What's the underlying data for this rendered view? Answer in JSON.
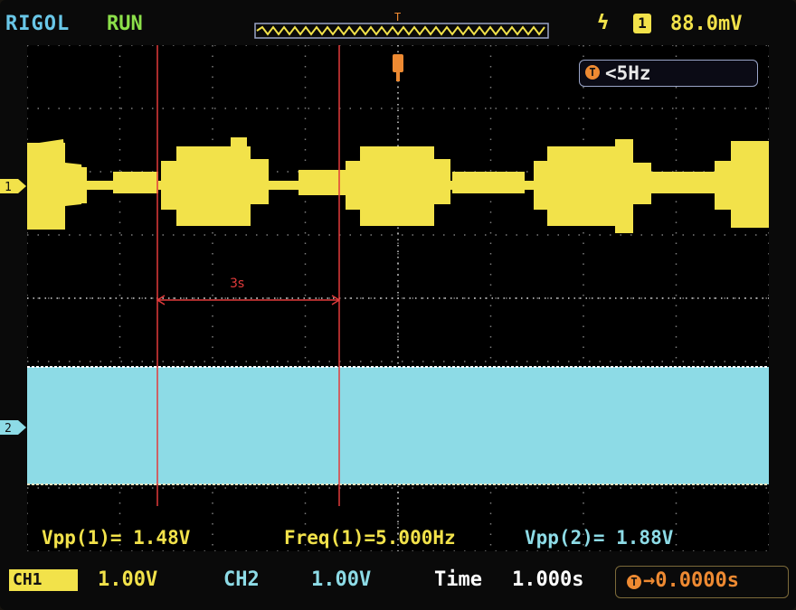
{
  "header": {
    "brand": "RIGOL",
    "run_state": "RUN",
    "trigger_slope_symbol": "ϟ",
    "trigger_channel": "1",
    "trigger_level": "88.0mV"
  },
  "trigger_freq_box": {
    "icon": "T",
    "text": "<5Hz"
  },
  "channels": {
    "ch1_marker": "1",
    "ch2_marker": "2"
  },
  "annotation": {
    "label": "3s"
  },
  "measurements": {
    "vpp1": "Vpp(1)= 1.48V",
    "freq1": "Freq(1)=5.000Hz",
    "vpp2": "Vpp(2)= 1.88V"
  },
  "status_bar": {
    "ch1_label": "CH1",
    "ch1_scale": "1.00V",
    "ch2_label": "CH2",
    "ch2_scale": "1.00V",
    "time_label": "Time",
    "time_value": "1.000s",
    "trigger_offset_icon": "T",
    "trigger_offset": "→0.0000s"
  },
  "colors": {
    "ch1": "#f2e24a",
    "ch2": "#8ddbe6",
    "annotation": "#e23b3b",
    "trigger": "#ee8a32"
  }
}
